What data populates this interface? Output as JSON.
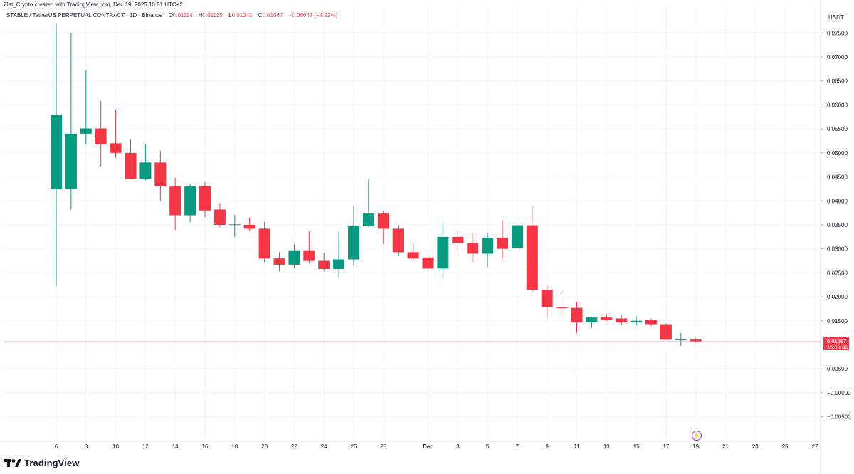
{
  "header": {
    "attribution": "Zlat_Crypto created with TradingView.com, Dec 19, 2025 10:51 UTC+2"
  },
  "legend": {
    "symbol": "STABLE / TetherUS PERPETUAL CONTRACT · 1D · Binance",
    "o_label": "O",
    "o_value": "0.01114",
    "h_label": "H",
    "h_value": "0.01125",
    "l_label": "L",
    "l_value": "0.01041",
    "c_label": "C",
    "c_value": "0.01067",
    "change": "−0.00047 (−4.22%)"
  },
  "price_badge": {
    "price": "0.01067",
    "countdown": "15:08:36"
  },
  "footer": {
    "brand": "TradingView"
  },
  "colors": {
    "up": "#089981",
    "down": "#f23645",
    "grid": "#f0f3fa",
    "text": "#131722"
  },
  "chart_data": {
    "type": "candlestick",
    "currency_label": "USDT",
    "ylim": [
      -0.0066,
      0.077
    ],
    "y_ticks": [
      "0.07500",
      "0.07000",
      "0.06500",
      "0.06000",
      "0.05500",
      "0.05000",
      "0.04500",
      "0.04000",
      "0.03500",
      "0.03000",
      "0.02500",
      "0.02000",
      "0.01500",
      "0.00500",
      "−0.00000",
      "−0.00500"
    ],
    "x_ticks": [
      "6",
      "8",
      "10",
      "12",
      "14",
      "16",
      "18",
      "20",
      "22",
      "24",
      "26",
      "28",
      "Dec",
      "3",
      "5",
      "7",
      "9",
      "11",
      "13",
      "15",
      "17",
      "19",
      "21",
      "23",
      "25",
      "27"
    ],
    "candles": [
      {
        "date": "Nov 6",
        "o": 0.0425,
        "h": 0.077,
        "l": 0.0222,
        "c": 0.058
      },
      {
        "date": "Nov 7",
        "o": 0.0425,
        "h": 0.075,
        "l": 0.0382,
        "c": 0.054
      },
      {
        "date": "Nov 8",
        "o": 0.054,
        "h": 0.0672,
        "l": 0.0518,
        "c": 0.0551
      },
      {
        "date": "Nov 9",
        "o": 0.0551,
        "h": 0.0608,
        "l": 0.0472,
        "c": 0.0518
      },
      {
        "date": "Nov 10",
        "o": 0.052,
        "h": 0.059,
        "l": 0.049,
        "c": 0.05
      },
      {
        "date": "Nov 11",
        "o": 0.05,
        "h": 0.0528,
        "l": 0.0445,
        "c": 0.0446
      },
      {
        "date": "Nov 12",
        "o": 0.0446,
        "h": 0.0518,
        "l": 0.0443,
        "c": 0.048
      },
      {
        "date": "Nov 13",
        "o": 0.048,
        "h": 0.0505,
        "l": 0.04,
        "c": 0.043
      },
      {
        "date": "Nov 14",
        "o": 0.043,
        "h": 0.0448,
        "l": 0.034,
        "c": 0.037
      },
      {
        "date": "Nov 15",
        "o": 0.037,
        "h": 0.0435,
        "l": 0.0355,
        "c": 0.043
      },
      {
        "date": "Nov 16",
        "o": 0.043,
        "h": 0.044,
        "l": 0.0365,
        "c": 0.038
      },
      {
        "date": "Nov 17",
        "o": 0.0382,
        "h": 0.0395,
        "l": 0.0345,
        "c": 0.035
      },
      {
        "date": "Nov 18",
        "o": 0.035,
        "h": 0.037,
        "l": 0.0325,
        "c": 0.0351
      },
      {
        "date": "Nov 19",
        "o": 0.035,
        "h": 0.0365,
        "l": 0.0337,
        "c": 0.0342
      },
      {
        "date": "Nov 20",
        "o": 0.0342,
        "h": 0.0357,
        "l": 0.0272,
        "c": 0.028
      },
      {
        "date": "Nov 21",
        "o": 0.028,
        "h": 0.0293,
        "l": 0.0253,
        "c": 0.0267
      },
      {
        "date": "Nov 22",
        "o": 0.0267,
        "h": 0.031,
        "l": 0.026,
        "c": 0.0297
      },
      {
        "date": "Nov 23",
        "o": 0.0297,
        "h": 0.0337,
        "l": 0.027,
        "c": 0.0275
      },
      {
        "date": "Nov 24",
        "o": 0.0275,
        "h": 0.0292,
        "l": 0.0253,
        "c": 0.0258
      },
      {
        "date": "Nov 25",
        "o": 0.0258,
        "h": 0.0336,
        "l": 0.024,
        "c": 0.0278
      },
      {
        "date": "Nov 26",
        "o": 0.0278,
        "h": 0.039,
        "l": 0.0265,
        "c": 0.0347
      },
      {
        "date": "Nov 27",
        "o": 0.0347,
        "h": 0.0445,
        "l": 0.0345,
        "c": 0.0375
      },
      {
        "date": "Nov 28",
        "o": 0.0375,
        "h": 0.038,
        "l": 0.031,
        "c": 0.0342
      },
      {
        "date": "Nov 29",
        "o": 0.0342,
        "h": 0.035,
        "l": 0.0285,
        "c": 0.0293
      },
      {
        "date": "Nov 30",
        "o": 0.0293,
        "h": 0.031,
        "l": 0.0275,
        "c": 0.028
      },
      {
        "date": "Dec 1",
        "o": 0.0282,
        "h": 0.029,
        "l": 0.0258,
        "c": 0.0259
      },
      {
        "date": "Dec 2",
        "o": 0.0259,
        "h": 0.0355,
        "l": 0.0237,
        "c": 0.0325
      },
      {
        "date": "Dec 3",
        "o": 0.0325,
        "h": 0.0338,
        "l": 0.0295,
        "c": 0.0312
      },
      {
        "date": "Dec 4",
        "o": 0.0312,
        "h": 0.0333,
        "l": 0.0272,
        "c": 0.029
      },
      {
        "date": "Dec 5",
        "o": 0.029,
        "h": 0.0333,
        "l": 0.0262,
        "c": 0.0323
      },
      {
        "date": "Dec 6",
        "o": 0.0323,
        "h": 0.036,
        "l": 0.028,
        "c": 0.03
      },
      {
        "date": "Dec 7",
        "o": 0.0302,
        "h": 0.035,
        "l": 0.0302,
        "c": 0.0349
      },
      {
        "date": "Dec 8",
        "o": 0.0349,
        "h": 0.039,
        "l": 0.021,
        "c": 0.0215
      },
      {
        "date": "Dec 9",
        "o": 0.0215,
        "h": 0.0225,
        "l": 0.0155,
        "c": 0.0178
      },
      {
        "date": "Dec 10",
        "o": 0.0178,
        "h": 0.0212,
        "l": 0.0165,
        "c": 0.0177
      },
      {
        "date": "Dec 11",
        "o": 0.0177,
        "h": 0.019,
        "l": 0.0125,
        "c": 0.0147
      },
      {
        "date": "Dec 12",
        "o": 0.0147,
        "h": 0.0158,
        "l": 0.0135,
        "c": 0.0157
      },
      {
        "date": "Dec 13",
        "o": 0.0157,
        "h": 0.0165,
        "l": 0.0149,
        "c": 0.0152
      },
      {
        "date": "Dec 14",
        "o": 0.0155,
        "h": 0.0162,
        "l": 0.0141,
        "c": 0.0147
      },
      {
        "date": "Dec 15",
        "o": 0.0147,
        "h": 0.016,
        "l": 0.014,
        "c": 0.015
      },
      {
        "date": "Dec 16",
        "o": 0.0152,
        "h": 0.0155,
        "l": 0.0139,
        "c": 0.0143
      },
      {
        "date": "Dec 17",
        "o": 0.0143,
        "h": 0.0145,
        "l": 0.011,
        "c": 0.0111
      },
      {
        "date": "Dec 18",
        "o": 0.0111,
        "h": 0.0125,
        "l": 0.0098,
        "c": 0.0111
      },
      {
        "date": "Dec 19",
        "o": 0.0111,
        "h": 0.0113,
        "l": 0.0104,
        "c": 0.0107
      }
    ],
    "last_price": 0.01067
  }
}
